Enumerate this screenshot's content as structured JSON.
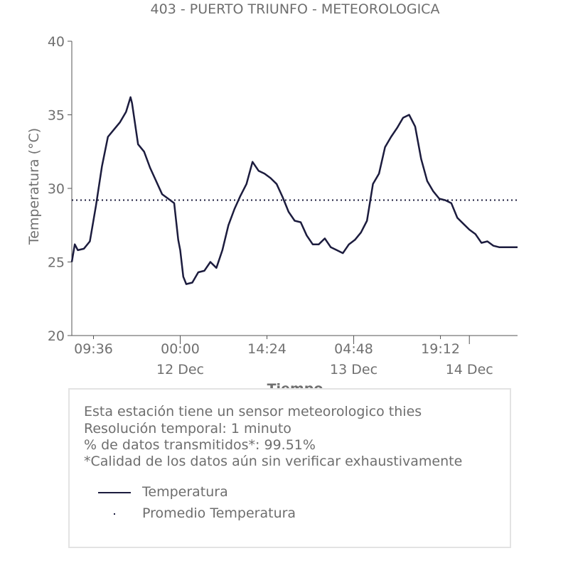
{
  "chart_data": {
    "type": "line",
    "title": "403 - PUERTO TRIUNFO - METEOROLOGICA",
    "xlabel": "Tiempo",
    "ylabel": "Temperatura (°C)",
    "ylim": [
      20,
      40
    ],
    "yticks": [
      20,
      25,
      30,
      35,
      40
    ],
    "x_range": [
      "2023-12-11 06:00",
      "2023-12-14 08:00"
    ],
    "xticks": [
      {
        "time": "2023-12-11 09:36",
        "label": "09:36",
        "sublabel": ""
      },
      {
        "time": "2023-12-12 00:00",
        "label": "00:00",
        "sublabel": "12 Dec"
      },
      {
        "time": "2023-12-12 14:24",
        "label": "14:24",
        "sublabel": ""
      },
      {
        "time": "2023-12-13 04:48",
        "label": "04:48",
        "sublabel": "13 Dec"
      },
      {
        "time": "2023-12-13 19:12",
        "label": "19:12",
        "sublabel": ""
      },
      {
        "time": "2023-12-14 00:00",
        "label": "",
        "sublabel": "14 Dec"
      }
    ],
    "grid": false,
    "series": [
      {
        "name": "Temperatura",
        "color": "#1c1c3e",
        "style": "solid",
        "x": [
          "2023-12-11 06:00",
          "2023-12-11 06:30",
          "2023-12-11 07:00",
          "2023-12-11 08:00",
          "2023-12-11 09:00",
          "2023-12-11 10:00",
          "2023-12-11 11:00",
          "2023-12-11 12:00",
          "2023-12-11 13:00",
          "2023-12-11 14:00",
          "2023-12-11 15:00",
          "2023-12-11 15:45",
          "2023-12-11 16:00",
          "2023-12-11 17:00",
          "2023-12-11 18:00",
          "2023-12-11 19:00",
          "2023-12-11 20:00",
          "2023-12-11 21:00",
          "2023-12-11 22:00",
          "2023-12-11 23:00",
          "2023-12-11 23:40",
          "2023-12-12 00:00",
          "2023-12-12 00:30",
          "2023-12-12 01:00",
          "2023-12-12 02:00",
          "2023-12-12 03:00",
          "2023-12-12 04:00",
          "2023-12-12 05:00",
          "2023-12-12 06:00",
          "2023-12-12 07:00",
          "2023-12-12 08:00",
          "2023-12-12 09:00",
          "2023-12-12 10:00",
          "2023-12-12 11:00",
          "2023-12-12 12:00",
          "2023-12-12 13:00",
          "2023-12-12 14:00",
          "2023-12-12 15:00",
          "2023-12-12 16:00",
          "2023-12-12 17:00",
          "2023-12-12 18:00",
          "2023-12-12 19:00",
          "2023-12-12 20:00",
          "2023-12-12 21:00",
          "2023-12-12 22:00",
          "2023-12-12 23:00",
          "2023-12-13 00:00",
          "2023-12-13 01:00",
          "2023-12-13 02:00",
          "2023-12-13 03:00",
          "2023-12-13 04:00",
          "2023-12-13 05:00",
          "2023-12-13 06:00",
          "2023-12-13 07:00",
          "2023-12-13 08:00",
          "2023-12-13 09:00",
          "2023-12-13 10:00",
          "2023-12-13 11:00",
          "2023-12-13 12:00",
          "2023-12-13 13:00",
          "2023-12-13 14:00",
          "2023-12-13 15:00",
          "2023-12-13 16:00",
          "2023-12-13 17:00",
          "2023-12-13 18:00",
          "2023-12-13 19:00",
          "2023-12-13 20:00",
          "2023-12-13 21:00",
          "2023-12-13 22:00",
          "2023-12-13 23:00",
          "2023-12-14 00:00",
          "2023-12-14 01:00",
          "2023-12-14 02:00",
          "2023-12-14 03:00",
          "2023-12-14 04:00",
          "2023-12-14 05:00",
          "2023-12-14 06:00",
          "2023-12-14 07:00",
          "2023-12-14 08:00"
        ],
        "values": [
          25.0,
          26.2,
          25.8,
          25.9,
          26.4,
          28.8,
          31.5,
          33.5,
          34.0,
          34.5,
          35.2,
          36.2,
          35.8,
          33.0,
          32.5,
          31.4,
          30.5,
          29.6,
          29.3,
          29.0,
          26.5,
          25.8,
          24.0,
          23.5,
          23.6,
          24.3,
          24.4,
          25.0,
          24.6,
          25.8,
          27.5,
          28.6,
          29.5,
          30.3,
          31.8,
          31.2,
          31.0,
          30.7,
          30.3,
          29.4,
          28.4,
          27.8,
          27.7,
          26.8,
          26.2,
          26.2,
          26.6,
          26.0,
          25.8,
          25.6,
          26.2,
          26.5,
          27.0,
          27.8,
          30.3,
          31.0,
          32.8,
          33.5,
          34.1,
          34.8,
          35.0,
          34.2,
          32.0,
          30.5,
          29.8,
          29.3,
          29.2,
          29.0,
          28.0,
          27.6,
          27.2,
          26.9,
          26.3,
          26.4,
          26.1,
          26.0,
          26.0,
          26.0,
          26.0
        ]
      },
      {
        "name": "Promedio Temperatura",
        "color": "#1c1c3e",
        "style": "dotted",
        "value": 29.2
      }
    ]
  },
  "info": {
    "lines": [
      "Esta estación tiene un sensor meteorologico thies",
      "Resolución temporal: 1 minuto",
      "% de datos transmitidos*: 99.51%",
      "*Calidad de los datos aún sin verificar exhaustivamente"
    ],
    "legend": [
      {
        "label": "Temperatura"
      },
      {
        "label": "Promedio Temperatura"
      }
    ]
  }
}
